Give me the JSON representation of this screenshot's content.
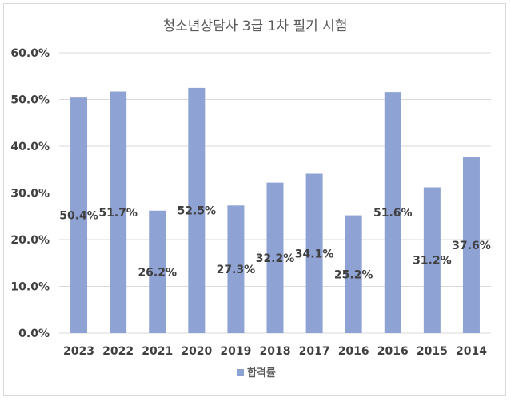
{
  "chart_data": {
    "type": "bar",
    "title": "청소년상담사 3급 1차 필기 시험",
    "categories": [
      "2023",
      "2022",
      "2021",
      "2020",
      "2019",
      "2018",
      "2017",
      "2016",
      "2016",
      "2015",
      "2014"
    ],
    "series": [
      {
        "name": "합격률",
        "values": [
          50.4,
          51.7,
          26.2,
          52.5,
          27.3,
          32.2,
          34.1,
          25.2,
          51.6,
          31.2,
          37.6
        ],
        "labels": [
          "50.4%",
          "51.7%",
          "26.2%",
          "52.5%",
          "27.3%",
          "32.2%",
          "34.1%",
          "25.2%",
          "51.6%",
          "31.2%",
          "37.6%"
        ]
      }
    ],
    "ylim": [
      0,
      60
    ],
    "yticks": [
      "0.0%",
      "10.0%",
      "20.0%",
      "30.0%",
      "40.0%",
      "50.0%",
      "60.0%"
    ],
    "ytick_values": [
      0,
      10,
      20,
      30,
      40,
      50,
      60
    ],
    "grid": true,
    "legend_position": "bottom",
    "bar_color": "#8ea2d3"
  }
}
